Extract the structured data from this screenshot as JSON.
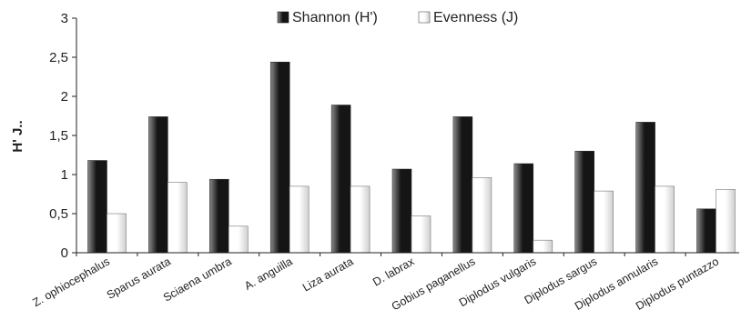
{
  "chart_data": {
    "type": "bar",
    "title": "",
    "xlabel": "",
    "ylabel": "H' J..",
    "ylim": [
      0,
      3
    ],
    "yticks": [
      "0",
      "0,5",
      "1",
      "1,5",
      "2",
      "2,5",
      "3"
    ],
    "grid": false,
    "legend_position": "top",
    "categories": [
      "Z. ophiocephalus",
      "Sparus aurata",
      "Sciaena umbra",
      "A. anguilla",
      "Liza aurata",
      "D. labrax",
      "Gobius paganellus",
      "Diplodus vulgaris",
      "Diplodus sargus",
      "Diplodus annularis",
      "Diplodus puntazzo"
    ],
    "series": [
      {
        "name": "Shannon (H')",
        "values": [
          1.18,
          1.74,
          0.94,
          2.44,
          1.89,
          1.07,
          1.74,
          1.14,
          1.3,
          1.67,
          0.56
        ],
        "color_light": "#8a8a8a",
        "color_dark": "#151515"
      },
      {
        "name": "Evenness (J)",
        "values": [
          0.5,
          0.9,
          0.34,
          0.85,
          0.85,
          0.47,
          0.96,
          0.16,
          0.79,
          0.85,
          0.81
        ],
        "color_light": "#ffffff",
        "color_dark": "#cfcfcf"
      }
    ]
  }
}
